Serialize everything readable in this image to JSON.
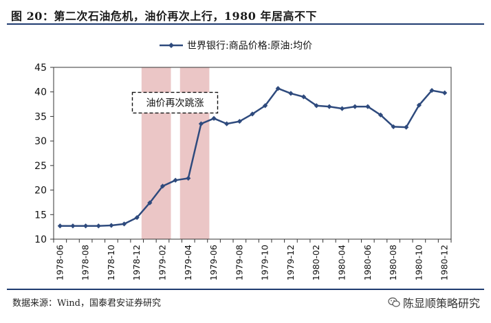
{
  "header": {
    "title": "图 20：第二次石油危机，油价再次上行，1980 年居高不下"
  },
  "footer": {
    "source": "数据来源：Wind，国泰君安证券研究",
    "watermark": "陈显顺策略研究",
    "watermark_icon": "wechat-icon"
  },
  "chart_data": {
    "type": "line",
    "title": "",
    "xlabel": "",
    "ylabel": "",
    "legend": {
      "position": "top-center"
    },
    "ylim": [
      10,
      45
    ],
    "yticks": [
      10,
      15,
      20,
      25,
      30,
      35,
      40,
      45
    ],
    "grid": false,
    "x": [
      "1978-06",
      "1978-07",
      "1978-08",
      "1978-09",
      "1978-10",
      "1978-11",
      "1978-12",
      "1979-01",
      "1979-02",
      "1979-03",
      "1979-04",
      "1979-05",
      "1979-06",
      "1979-07",
      "1979-08",
      "1979-09",
      "1979-10",
      "1979-11",
      "1979-12",
      "1980-01",
      "1980-02",
      "1980-03",
      "1980-04",
      "1980-05",
      "1980-06",
      "1980-07",
      "1980-08",
      "1980-09",
      "1980-10",
      "1980-11",
      "1980-12"
    ],
    "xtick_labels": [
      "1978-06",
      "1978-08",
      "1978-10",
      "1978-12",
      "1979-02",
      "1979-04",
      "1979-06",
      "1979-08",
      "1979-10",
      "1979-12",
      "1980-02",
      "1980-04",
      "1980-06",
      "1980-08",
      "1980-10",
      "1980-12"
    ],
    "series": [
      {
        "name": "世界银行:商品价格:原油:均价",
        "color": "#2e4a7d",
        "values": [
          12.7,
          12.7,
          12.7,
          12.7,
          12.8,
          13.1,
          14.4,
          17.4,
          20.8,
          22.0,
          22.4,
          33.5,
          34.6,
          33.5,
          34.0,
          35.5,
          37.2,
          40.7,
          39.7,
          39.0,
          37.2,
          37.0,
          36.6,
          37.0,
          37.0,
          35.3,
          32.9,
          32.8,
          37.3,
          40.3,
          39.8
        ]
      }
    ],
    "highlight_bands": [
      {
        "from": "1979-01",
        "to": "1979-02",
        "color": "#e8bcbc"
      },
      {
        "from": "1979-04",
        "to": "1979-05",
        "color": "#e8bcbc"
      }
    ],
    "annotations": [
      {
        "text": "油价再次跳涨",
        "anchor_x": "1979-02",
        "anchor_y": 37.8
      }
    ]
  }
}
